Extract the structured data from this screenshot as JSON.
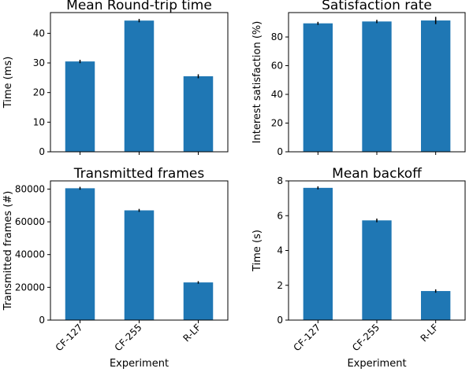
{
  "chart_data": [
    {
      "type": "bar",
      "title": "Mean Round-trip time",
      "xlabel": "",
      "ylabel": "Time (ms)",
      "categories": [
        "CF-127",
        "CF-255",
        "R-LF"
      ],
      "values": [
        30.5,
        44.3,
        25.5
      ],
      "errors": [
        0.3,
        0.3,
        0.4
      ],
      "ylim": [
        0,
        47
      ],
      "yticks": [
        0,
        10,
        20,
        30,
        40
      ],
      "show_xticklabels": false,
      "color": "#1f77b4"
    },
    {
      "type": "bar",
      "title": "Satisfaction rate",
      "xlabel": "",
      "ylabel": "Interest satisfaction (%)",
      "categories": [
        "CF-127",
        "CF-255",
        "R-LF"
      ],
      "values": [
        89.5,
        90.8,
        91.5
      ],
      "errors": [
        0.5,
        0.6,
        2.0
      ],
      "ylim": [
        0,
        97
      ],
      "yticks": [
        0,
        20,
        40,
        60,
        80
      ],
      "show_xticklabels": false,
      "color": "#1f77b4"
    },
    {
      "type": "bar",
      "title": "Transmitted frames",
      "xlabel": "Experiment",
      "ylabel": "Transmitted frames (#)",
      "categories": [
        "CF-127",
        "CF-255",
        "R-LF"
      ],
      "values": [
        80500,
        67000,
        23000
      ],
      "errors": [
        400,
        400,
        300
      ],
      "ylim": [
        0,
        85000
      ],
      "yticks": [
        0,
        20000,
        40000,
        60000,
        80000
      ],
      "show_xticklabels": true,
      "color": "#1f77b4"
    },
    {
      "type": "bar",
      "title": "Mean backoff",
      "xlabel": "Experiment",
      "ylabel": "Time (s)",
      "categories": [
        "CF-127",
        "CF-255",
        "R-LF"
      ],
      "values": [
        7.6,
        5.73,
        1.67
      ],
      "errors": [
        0.04,
        0.06,
        0.05
      ],
      "ylim": [
        0,
        8
      ],
      "yticks": [
        0,
        2,
        4,
        6,
        8
      ],
      "show_xticklabels": true,
      "color": "#1f77b4"
    }
  ]
}
